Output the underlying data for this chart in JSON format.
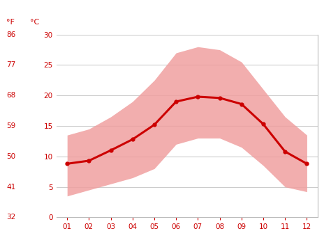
{
  "months": [
    1,
    2,
    3,
    4,
    5,
    6,
    7,
    8,
    9,
    10,
    11,
    12
  ],
  "month_labels": [
    "01",
    "02",
    "03",
    "04",
    "05",
    "06",
    "07",
    "08",
    "09",
    "10",
    "11",
    "12"
  ],
  "avg_temp_c": [
    8.8,
    9.3,
    11.0,
    12.8,
    15.2,
    19.0,
    19.8,
    19.6,
    18.6,
    15.3,
    10.8,
    8.8
  ],
  "max_temp_c": [
    13.5,
    14.5,
    16.5,
    19.0,
    22.5,
    27.0,
    28.0,
    27.5,
    25.5,
    21.0,
    16.5,
    13.5
  ],
  "min_temp_c": [
    3.5,
    4.5,
    5.5,
    6.5,
    8.0,
    12.0,
    13.0,
    13.0,
    11.5,
    8.5,
    5.0,
    4.2
  ],
  "yticks_c": [
    0,
    5,
    10,
    15,
    20,
    25,
    30
  ],
  "yticks_f": [
    "32",
    "41",
    "50",
    "59",
    "68",
    "77",
    "86"
  ],
  "ylim_c": [
    0,
    30
  ],
  "xlim": [
    0.5,
    12.5
  ],
  "line_color": "#cc0000",
  "fill_color": "#f0a0a0",
  "fill_alpha": 0.85,
  "marker": "o",
  "marker_size": 3.5,
  "line_width": 2.2,
  "grid_color": "#cccccc",
  "label_color": "#cc0000",
  "tick_label_color": "#cc0000",
  "spine_color": "#bbbbbb",
  "bg_color": "#ffffff",
  "ylabel_f": "°F",
  "ylabel_c": "°C"
}
